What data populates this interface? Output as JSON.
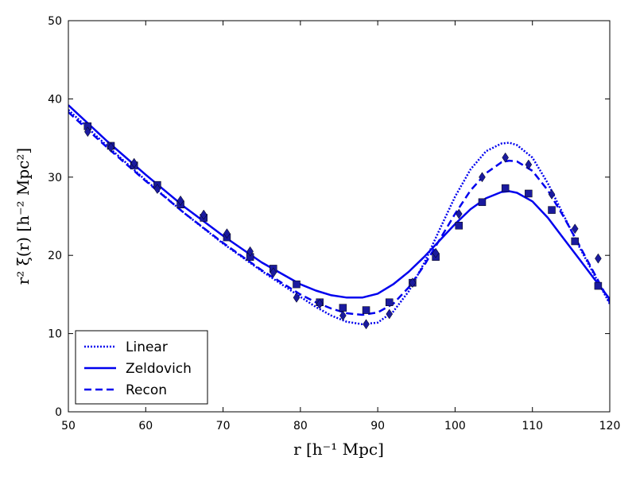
{
  "chart_data": {
    "type": "line",
    "title": "",
    "xlabel": "r  [h⁻¹ Mpc]",
    "ylabel": "r² ξ(r)  [h⁻² Mpc²]",
    "xlim": [
      50,
      120
    ],
    "ylim": [
      0,
      50
    ],
    "xticks": [
      50,
      60,
      70,
      80,
      90,
      100,
      110,
      120
    ],
    "yticks": [
      0,
      10,
      20,
      30,
      40,
      50
    ],
    "legend_position": "lower-left",
    "colors": {
      "line": "#0000ee",
      "marker": "#1a1a9e",
      "axis": "#000000"
    },
    "series": [
      {
        "name": "Linear",
        "style": "dotted",
        "x": [
          50,
          55,
          60,
          65,
          70,
          75,
          80,
          82,
          84,
          86,
          88,
          90,
          92,
          94,
          96,
          98,
          100,
          102,
          104,
          106,
          107,
          108,
          110,
          112,
          114,
          116,
          118,
          120
        ],
        "y": [
          38.6,
          34.0,
          29.6,
          25.4,
          21.5,
          18.0,
          14.7,
          13.4,
          12.3,
          11.5,
          11.2,
          11.4,
          12.8,
          15.4,
          19.0,
          23.3,
          27.5,
          31.0,
          33.3,
          34.3,
          34.4,
          34.1,
          32.5,
          29.2,
          25.2,
          21.2,
          17.5,
          13.8
        ]
      },
      {
        "name": "Zeldovich",
        "style": "solid",
        "x": [
          50,
          55,
          60,
          65,
          70,
          75,
          80,
          82,
          84,
          86,
          88,
          90,
          92,
          94,
          96,
          98,
          100,
          102,
          104,
          106,
          107,
          108,
          110,
          112,
          114,
          116,
          118,
          120
        ],
        "y": [
          39.2,
          34.6,
          30.3,
          26.2,
          22.5,
          19.1,
          16.3,
          15.5,
          14.9,
          14.6,
          14.6,
          15.1,
          16.3,
          17.9,
          19.8,
          21.9,
          24.0,
          25.9,
          27.3,
          28.1,
          28.2,
          28.0,
          26.9,
          24.8,
          22.2,
          19.6,
          17.0,
          14.4
        ]
      },
      {
        "name": "Recon",
        "style": "dashed",
        "x": [
          50,
          55,
          60,
          65,
          70,
          75,
          80,
          82,
          84,
          86,
          88,
          90,
          92,
          94,
          96,
          98,
          100,
          102,
          104,
          106,
          107,
          108,
          110,
          112,
          114,
          116,
          118,
          120
        ],
        "y": [
          38.3,
          33.8,
          29.5,
          25.4,
          21.6,
          18.1,
          15.0,
          14.0,
          13.2,
          12.6,
          12.4,
          12.7,
          13.8,
          15.9,
          18.7,
          22.0,
          25.3,
          28.3,
          30.5,
          31.9,
          32.1,
          32.0,
          30.8,
          28.3,
          25.0,
          21.4,
          17.7,
          14.0
        ]
      }
    ],
    "markers": [
      {
        "name": "squares",
        "shape": "square",
        "x": [
          52.5,
          55.5,
          58.5,
          61.5,
          64.5,
          67.5,
          70.5,
          73.5,
          76.5,
          79.5,
          82.5,
          85.5,
          88.5,
          91.5,
          94.5,
          97.5,
          100.5,
          103.5,
          106.5,
          109.5,
          112.5,
          115.5,
          118.5
        ],
        "y": [
          36.5,
          34.0,
          31.5,
          29.0,
          26.5,
          24.8,
          22.3,
          19.8,
          18.3,
          16.3,
          14.0,
          13.3,
          13.0,
          14.0,
          16.5,
          19.8,
          23.8,
          26.8,
          28.6,
          27.9,
          25.8,
          21.8,
          16.1
        ]
      },
      {
        "name": "diamonds",
        "shape": "diamond",
        "x": [
          52.5,
          55.5,
          58.5,
          61.5,
          64.5,
          67.5,
          70.5,
          73.5,
          76.5,
          79.5,
          82.5,
          85.5,
          88.5,
          91.5,
          94.5,
          97.5,
          100.5,
          103.5,
          106.5,
          109.5,
          112.5,
          115.5,
          118.5
        ],
        "y": [
          35.8,
          33.8,
          31.8,
          28.5,
          27.0,
          25.2,
          22.8,
          20.5,
          17.8,
          14.6,
          13.8,
          12.3,
          11.2,
          12.5,
          16.5,
          20.3,
          25.3,
          30.0,
          32.5,
          31.6,
          27.8,
          23.4,
          19.6
        ]
      }
    ]
  }
}
